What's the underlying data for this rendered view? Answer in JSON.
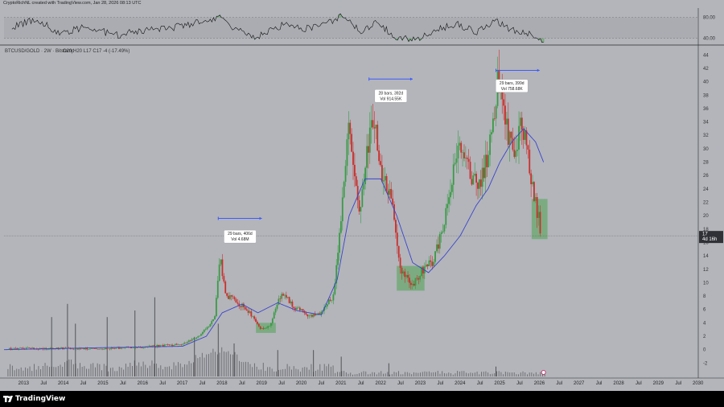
{
  "header": {
    "text": "CryptoRichNL created with TradingView.com, Jan 28, 2026 08:13 UTC"
  },
  "footer": {
    "brand": "TradingView"
  },
  "colors": {
    "background": "#b3b5bb",
    "up_candle": "#3a9a45",
    "down_candle": "#c9302c",
    "moving_average": "#3b44c8",
    "range_box": "#6aa86e",
    "range_arrow": "#3d5afe",
    "volume": "#2b2b2b",
    "price_marker": "#2f3136"
  },
  "chart_data": [
    {
      "type": "line",
      "title": "",
      "ylabel": "",
      "ylim": [
        30,
        95
      ],
      "yticks": [
        "80.00",
        "40.00"
      ],
      "overbought_band": [
        40,
        80
      ],
      "series": [
        {
          "x": [
            2012.7,
            2013.3,
            2013.9,
            2014.6,
            2015.3,
            2016.0,
            2016.7,
            2017.4,
            2017.9,
            2018.4,
            2018.9,
            2019.5,
            2020.1,
            2020.7,
            2021.1,
            2021.5,
            2021.9,
            2022.4,
            2022.9,
            2023.4,
            2023.9,
            2024.4,
            2024.9,
            2025.3,
            2025.7,
            2026.1
          ],
          "values": [
            60,
            78,
            50,
            62,
            45,
            55,
            60,
            70,
            82,
            55,
            42,
            65,
            58,
            72,
            85,
            50,
            72,
            40,
            38,
            55,
            68,
            52,
            74,
            55,
            50,
            36
          ]
        }
      ]
    },
    {
      "type": "candlestick",
      "title": "BTCUSD/GOLD · 2W · Bitstamp",
      "subtitle": "O20 H20 L17 C17 -4 (-17.49%)",
      "xlabel": "",
      "ylabel": "",
      "xlim": [
        2012.5,
        2030.0
      ],
      "ylim": [
        -4,
        45
      ],
      "yticks": [
        -2,
        0,
        2,
        4,
        6,
        8,
        10,
        12,
        14,
        16,
        18,
        20,
        22,
        24,
        26,
        28,
        30,
        32,
        34,
        36,
        38,
        40,
        42,
        44
      ],
      "xticks": [
        "2013",
        "Jul",
        "2014",
        "Jul",
        "2015",
        "Jul",
        "2016",
        "Jul",
        "2017",
        "Jul",
        "2018",
        "Jul",
        "2019",
        "Jul",
        "2020",
        "Jul",
        "2021",
        "Jul",
        "2022",
        "Jul",
        "2023",
        "Jul",
        "2024",
        "Jul",
        "2025",
        "Jul",
        "2026",
        "Jul",
        "2027",
        "Jul",
        "2028",
        "Jul",
        "2029",
        "Jul",
        "2030"
      ],
      "grid": false,
      "current_price": {
        "value": 17,
        "label": "17",
        "countdown": "4d 16h"
      },
      "moving_average": {
        "x": [
          2012.5,
          2015.0,
          2017.0,
          2017.6,
          2018.0,
          2018.5,
          2018.9,
          2019.4,
          2019.9,
          2020.5,
          2020.9,
          2021.2,
          2021.6,
          2022.0,
          2022.4,
          2022.8,
          2023.2,
          2023.6,
          2024.0,
          2024.4,
          2024.7,
          2025.0,
          2025.3,
          2025.6,
          2025.9,
          2026.1
        ],
        "values": [
          0,
          0.3,
          0.5,
          2.0,
          5.5,
          6.8,
          5.5,
          7.0,
          5.8,
          5.2,
          10.5,
          20.0,
          25.5,
          25.5,
          20.0,
          13.0,
          11.5,
          14.0,
          17.0,
          21.5,
          24.0,
          28.0,
          31.0,
          33.0,
          31.0,
          28.0
        ]
      },
      "price_path": {
        "x": [
          2012.6,
          2013.0,
          2013.5,
          2014.0,
          2014.5,
          2015.0,
          2015.5,
          2016.0,
          2016.5,
          2017.0,
          2017.4,
          2017.8,
          2017.95,
          2018.1,
          2018.4,
          2018.7,
          2018.95,
          2019.2,
          2019.5,
          2019.8,
          2020.2,
          2020.5,
          2020.8,
          2021.0,
          2021.2,
          2021.45,
          2021.7,
          2021.85,
          2022.0,
          2022.3,
          2022.5,
          2022.8,
          2023.0,
          2023.3,
          2023.6,
          2023.9,
          2024.2,
          2024.5,
          2024.75,
          2024.95,
          2025.15,
          2025.35,
          2025.55,
          2025.75,
          2025.9,
          2026.05
        ],
        "values": [
          0.1,
          0.2,
          0.1,
          0.2,
          0.1,
          0.1,
          0.3,
          0.4,
          0.6,
          0.8,
          2.0,
          4.5,
          13.5,
          8.0,
          7.0,
          5.5,
          3.2,
          3.5,
          8.5,
          6.5,
          5.0,
          5.5,
          8.0,
          19.0,
          34.5,
          20.5,
          31.0,
          35.5,
          26.0,
          22.0,
          12.0,
          9.5,
          11.5,
          13.0,
          18.5,
          30.0,
          27.0,
          24.0,
          31.0,
          40.5,
          34.0,
          29.0,
          33.5,
          27.5,
          22.0,
          17.0
        ]
      },
      "range_boxes": [
        {
          "x_start": 2018.85,
          "x_end": 2019.35,
          "y_low": 2.5,
          "y_high": 4.0
        },
        {
          "x_start": 2022.4,
          "x_end": 2023.1,
          "y_low": 8.8,
          "y_high": 12.5
        },
        {
          "x_start": 2025.8,
          "x_end": 2026.2,
          "y_low": 16.5,
          "y_high": 22.5
        }
      ],
      "annotations": [
        {
          "lines": [
            "29 bars, 406d",
            "Vol 4.68M"
          ],
          "arrow_x": [
            2017.9,
            2019.0
          ],
          "arrow_y": 19.6,
          "box_x": 2018.45,
          "box_y": 17.0
        },
        {
          "lines": [
            "28 bars, 392d",
            "Vol 914.55K"
          ],
          "arrow_x": [
            2021.7,
            2022.8
          ],
          "arrow_y": 40.4,
          "box_x": 2022.25,
          "box_y": 38.0
        },
        {
          "lines": [
            "29 bars, 399d",
            "Vol 758.68K"
          ],
          "arrow_x": [
            2024.9,
            2026.0
          ],
          "arrow_y": 41.7,
          "box_x": 2025.3,
          "box_y": 39.5
        }
      ],
      "volume_y_baseline": -4,
      "volume_spikes": [
        {
          "x": 2013.7,
          "h": 9
        },
        {
          "x": 2014.1,
          "h": 11
        },
        {
          "x": 2014.3,
          "h": 8
        },
        {
          "x": 2015.1,
          "h": 9
        },
        {
          "x": 2015.8,
          "h": 10
        },
        {
          "x": 2016.3,
          "h": 12
        },
        {
          "x": 2017.3,
          "h": 6
        },
        {
          "x": 2017.9,
          "h": 8
        },
        {
          "x": 2018.3,
          "h": 5
        },
        {
          "x": 2019.4,
          "h": 4
        },
        {
          "x": 2020.3,
          "h": 4
        },
        {
          "x": 2021.0,
          "h": 3
        },
        {
          "x": 2022.2,
          "h": 2
        },
        {
          "x": 2024.9,
          "h": 1.5
        }
      ]
    }
  ]
}
